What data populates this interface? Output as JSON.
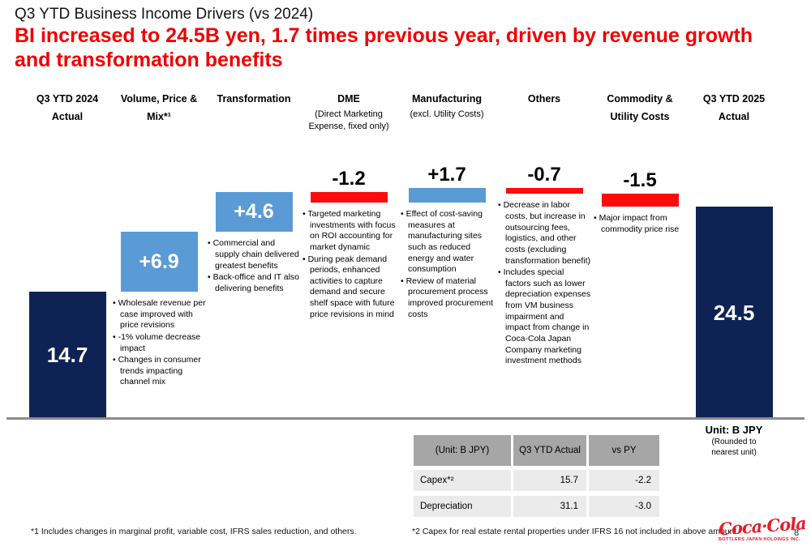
{
  "slide": {
    "title": "Q3 YTD Business Income Drivers (vs 2024)",
    "subtitle_line1": "BI increased to 24.5B yen, 1.7 times previous year, driven by revenue growth",
    "subtitle_line2": "and transformation benefits",
    "unit_label": "Unit: B JPY",
    "unit_sub": "(Rounded to nearest unit)",
    "footnote1": "*1 Includes changes in marginal profit, variable cost, IFRS sales reduction, and others.",
    "footnote2": "*2 Capex for real estate rental properties under IFRS 16 not included in above amount",
    "logo_brand": "Coca·Cola",
    "logo_sub": "BOTTLERS JAPAN HOLDINGS INC.",
    "page_number": "8"
  },
  "chart_data": {
    "type": "bar",
    "subtype": "waterfall",
    "title": "Q3 YTD Business Income Drivers (vs 2024)",
    "unit": "B JPY",
    "ylim": [
      0,
      28
    ],
    "grid": false,
    "categories": [
      "Q3 YTD 2024 Actual",
      "Volume, Price & Mix",
      "Transformation",
      "DME",
      "Manufacturing",
      "Others",
      "Commodity & Utility Costs",
      "Q3 YTD 2025 Actual"
    ],
    "steps": [
      {
        "label": "14.7",
        "value": 14.7,
        "kind": "total",
        "label_pos": "inside"
      },
      {
        "label": "+6.9",
        "value": 6.9,
        "kind": "delta",
        "label_pos": "inside"
      },
      {
        "label": "+4.6",
        "value": 4.6,
        "kind": "delta",
        "label_pos": "inside"
      },
      {
        "label": "-1.2",
        "value": -1.2,
        "kind": "delta",
        "label_pos": "above"
      },
      {
        "label": "+1.7",
        "value": 1.7,
        "kind": "delta",
        "label_pos": "above"
      },
      {
        "label": "-0.7",
        "value": -0.7,
        "kind": "delta",
        "label_pos": "above"
      },
      {
        "label": "-1.5",
        "value": -1.5,
        "kind": "delta",
        "label_pos": "above"
      },
      {
        "label": "24.5",
        "value": 24.5,
        "kind": "total",
        "label_pos": "inside"
      }
    ],
    "colors": {
      "total": "#0e2254",
      "increase": "#5b9bd5",
      "decrease": "#fe0b0b"
    }
  },
  "columns": [
    {
      "header_lines": [
        "Q3 YTD 2024",
        "Actual"
      ],
      "sub_lines": [],
      "bullets": []
    },
    {
      "header_lines": [
        "Volume, Price &",
        "Mix*¹"
      ],
      "sub_lines": [],
      "bullets": [
        "Wholesale revenue per case improved with price revisions",
        "-1% volume decrease impact",
        "Changes in consumer trends impacting channel mix"
      ]
    },
    {
      "header_lines": [
        "Transformation"
      ],
      "sub_lines": [],
      "bullets": [
        "Commercial and supply chain delivered greatest benefits",
        "Back-office and IT also delivering benefits"
      ]
    },
    {
      "header_lines": [
        "DME"
      ],
      "sub_lines": [
        "(Direct Marketing",
        "Expense, fixed only)"
      ],
      "bullets": [
        "Targeted marketing investments with focus on ROI accounting for market dynamic",
        "During peak demand periods, enhanced activities to capture demand and secure shelf space with future price revisions in mind"
      ]
    },
    {
      "header_lines": [
        "Manufacturing"
      ],
      "sub_lines": [
        "(excl. Utility Costs)"
      ],
      "bullets": [
        "Effect of cost-saving measures at manufacturing sites such as reduced energy and water consumption",
        "Review of material procurement process improved procurement costs"
      ]
    },
    {
      "header_lines": [
        "Others"
      ],
      "sub_lines": [],
      "bullets": [
        "Decrease in labor costs, but increase in outsourcing fees, logistics, and other costs (excluding transformation benefit)",
        "Includes special factors such as lower depreciation expenses from VM business impairment and impact from change in Coca-Cola Japan Company marketing investment methods"
      ]
    },
    {
      "header_lines": [
        "Commodity &",
        "Utility Costs"
      ],
      "sub_lines": [],
      "bullets": [
        "Major impact from commodity price rise"
      ]
    },
    {
      "header_lines": [
        "Q3 YTD 2025",
        "Actual"
      ],
      "sub_lines": [],
      "bullets": []
    }
  ],
  "table": {
    "headers": [
      "(Unit: B JPY)",
      "Q3 YTD Actual",
      "vs PY"
    ],
    "rows": [
      {
        "label": "Capex*²",
        "actual": "15.7",
        "vs_py": "-2.2"
      },
      {
        "label": "Depreciation",
        "actual": "31.1",
        "vs_py": "-3.0"
      }
    ]
  }
}
